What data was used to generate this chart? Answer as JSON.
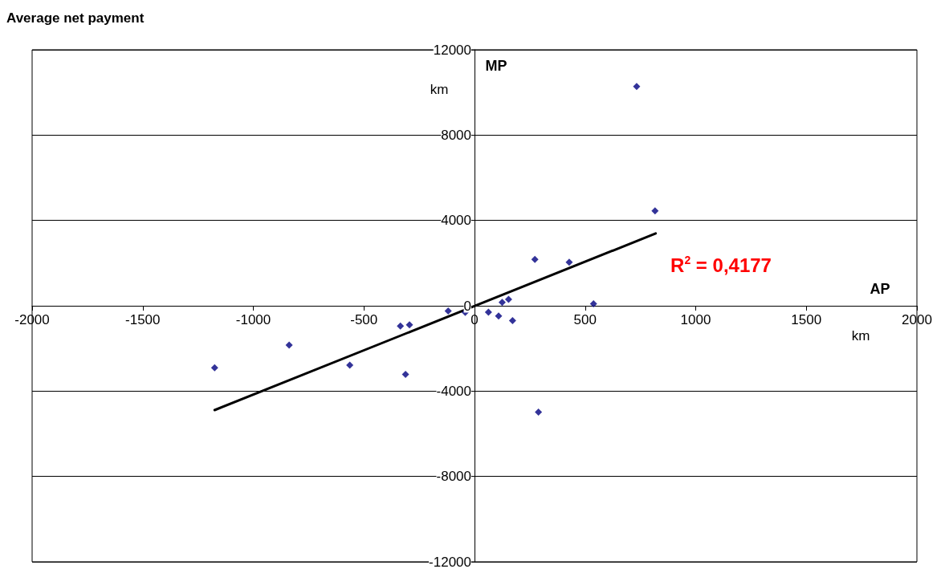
{
  "chart_data": {
    "type": "scatter",
    "title": "Average net payment",
    "xlabel": "AP",
    "ylabel": "MP",
    "annotations": [
      "km",
      "km",
      "R$^{2}$ = 0,4177"
    ],
    "xlim": [
      -2000,
      2000
    ],
    "xticks": [
      -2000,
      -1500,
      -1000,
      -500,
      0,
      500,
      1000,
      1500,
      2000
    ],
    "ylim": [
      -12000,
      12000
    ],
    "yticks": [
      -12000,
      -8000,
      -4000,
      0,
      4000,
      8000,
      12000
    ],
    "grid": "y",
    "marker": "diamond",
    "series": [
      {
        "color": "#000080",
        "x": [
          -1175,
          -838,
          -564,
          -335,
          -294,
          -312,
          -119,
          -42,
          63,
          109,
          125,
          154,
          172,
          273,
          428,
          538,
          289,
          733,
          816
        ],
        "values": [
          -2910,
          -1840,
          -2780,
          -950,
          -890,
          -3220,
          -240,
          -310,
          -300,
          -480,
          160,
          300,
          -700,
          2170,
          2040,
          90,
          -4980,
          10280,
          4450
        ]
      },
      {
        "type": "line",
        "color": "#000000",
        "marker": "none",
        "x": [
          -1175,
          819
        ],
        "values": [
          -4890,
          3390
        ]
      }
    ]
  }
}
